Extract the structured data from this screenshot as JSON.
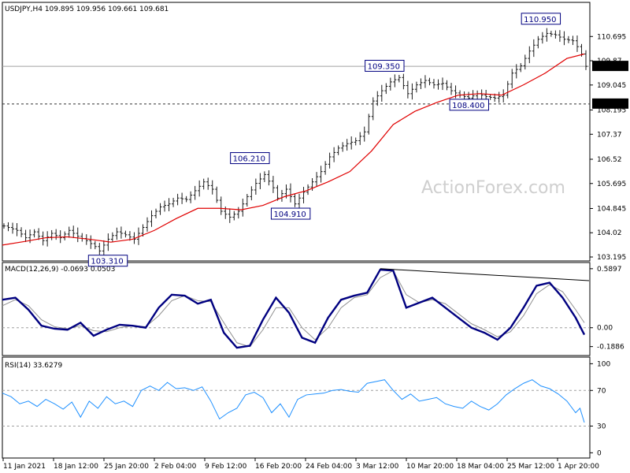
{
  "chart_data": {
    "type": "line",
    "watermark": "ActionForex.com",
    "x_labels": [
      "11 Jan 2021",
      "18 Jan 12:00",
      "25 Jan 20:00",
      "2 Feb 04:00",
      "9 Feb 12:00",
      "16 Feb 20:00",
      "24 Feb 04:00",
      "3 Mar 12:00",
      "10 Mar 20:00",
      "18 Mar 04:00",
      "25 Mar 12:00",
      "1 Apr 20:00"
    ],
    "price": {
      "header": "USDJPY,H4  109.895 109.956 109.661 109.681",
      "y_ticks": [
        103.195,
        104.02,
        104.845,
        105.695,
        106.52,
        107.37,
        108.195,
        109.045,
        109.87,
        110.695
      ],
      "ylim": [
        103.195,
        111.4
      ],
      "current": {
        "value": 109.681,
        "label": "109.681"
      },
      "level": {
        "value": 108.4,
        "label": "108.400"
      },
      "annotations": [
        {
          "label": "103.310",
          "x": 22,
          "y": 103.31
        },
        {
          "label": "106.210",
          "x": 57,
          "y": 106.21
        },
        {
          "label": "104.910",
          "x": 63,
          "y": 104.91
        },
        {
          "label": "109.350",
          "x": 88,
          "y": 109.35
        },
        {
          "label": "108.400",
          "x": 107,
          "y": 108.4
        },
        {
          "label": "110.950",
          "x": 124,
          "y": 110.95
        }
      ],
      "close": [
        [
          0,
          104.25
        ],
        [
          3,
          104.1
        ],
        [
          5,
          103.85
        ],
        [
          7,
          104.05
        ],
        [
          9,
          103.75
        ],
        [
          11,
          104.0
        ],
        [
          13,
          103.85
        ],
        [
          15,
          104.1
        ],
        [
          17,
          103.9
        ],
        [
          19,
          103.75
        ],
        [
          21,
          103.55
        ],
        [
          22,
          103.4
        ],
        [
          24,
          103.8
        ],
        [
          26,
          104.05
        ],
        [
          28,
          103.95
        ],
        [
          30,
          103.8
        ],
        [
          32,
          104.2
        ],
        [
          34,
          104.6
        ],
        [
          36,
          104.9
        ],
        [
          38,
          105.0
        ],
        [
          40,
          105.2
        ],
        [
          42,
          105.15
        ],
        [
          44,
          105.45
        ],
        [
          46,
          105.75
        ],
        [
          48,
          105.5
        ],
        [
          50,
          104.75
        ],
        [
          52,
          104.55
        ],
        [
          54,
          104.75
        ],
        [
          56,
          105.25
        ],
        [
          58,
          105.7
        ],
        [
          60,
          106.0
        ],
        [
          62,
          105.55
        ],
        [
          63,
          105.2
        ],
        [
          65,
          105.5
        ],
        [
          67,
          105.0
        ],
        [
          69,
          105.4
        ],
        [
          71,
          105.75
        ],
        [
          73,
          106.1
        ],
        [
          75,
          106.6
        ],
        [
          77,
          106.9
        ],
        [
          79,
          107.05
        ],
        [
          81,
          107.15
        ],
        [
          83,
          107.45
        ],
        [
          85,
          108.5
        ],
        [
          87,
          108.85
        ],
        [
          89,
          109.15
        ],
        [
          91,
          109.3
        ],
        [
          93,
          108.75
        ],
        [
          95,
          109.05
        ],
        [
          97,
          109.2
        ],
        [
          99,
          109.05
        ],
        [
          101,
          109.1
        ],
        [
          103,
          108.85
        ],
        [
          105,
          108.7
        ],
        [
          107,
          108.6
        ],
        [
          109,
          108.75
        ],
        [
          111,
          108.65
        ],
        [
          113,
          108.6
        ],
        [
          115,
          108.7
        ],
        [
          117,
          109.45
        ],
        [
          119,
          109.7
        ],
        [
          121,
          110.2
        ],
        [
          123,
          110.6
        ],
        [
          125,
          110.8
        ],
        [
          127,
          110.75
        ],
        [
          129,
          110.6
        ],
        [
          131,
          110.55
        ],
        [
          132,
          110.35
        ],
        [
          133,
          110.1
        ],
        [
          134,
          109.68
        ]
      ],
      "ma": [
        [
          0,
          103.6
        ],
        [
          5,
          103.72
        ],
        [
          10,
          103.85
        ],
        [
          15,
          103.88
        ],
        [
          20,
          103.8
        ],
        [
          25,
          103.7
        ],
        [
          30,
          103.8
        ],
        [
          35,
          104.1
        ],
        [
          40,
          104.5
        ],
        [
          45,
          104.85
        ],
        [
          50,
          104.85
        ],
        [
          55,
          104.8
        ],
        [
          60,
          104.95
        ],
        [
          65,
          105.25
        ],
        [
          70,
          105.45
        ],
        [
          75,
          105.75
        ],
        [
          80,
          106.1
        ],
        [
          85,
          106.8
        ],
        [
          90,
          107.7
        ],
        [
          95,
          108.15
        ],
        [
          100,
          108.45
        ],
        [
          105,
          108.7
        ],
        [
          110,
          108.75
        ],
        [
          115,
          108.7
        ],
        [
          120,
          109.05
        ],
        [
          125,
          109.45
        ],
        [
          130,
          109.95
        ],
        [
          134,
          110.1
        ]
      ]
    },
    "macd": {
      "header": "MACD(12,26,9) -0.0693 0.0503",
      "y_ticks": [
        {
          "label": "0.5897",
          "v": 0.5897
        },
        {
          "label": "0.00",
          "v": 0.0
        },
        {
          "label": "-0.1886",
          "v": -0.1886
        }
      ],
      "ylim": [
        -0.27,
        0.62
      ],
      "line": [
        [
          0,
          0.28
        ],
        [
          3,
          0.3
        ],
        [
          6,
          0.18
        ],
        [
          9,
          0.02
        ],
        [
          12,
          -0.01
        ],
        [
          15,
          -0.02
        ],
        [
          18,
          0.05
        ],
        [
          21,
          -0.08
        ],
        [
          24,
          -0.02
        ],
        [
          27,
          0.03
        ],
        [
          30,
          0.02
        ],
        [
          33,
          0.0
        ],
        [
          36,
          0.2
        ],
        [
          39,
          0.33
        ],
        [
          42,
          0.32
        ],
        [
          45,
          0.24
        ],
        [
          48,
          0.28
        ],
        [
          51,
          -0.05
        ],
        [
          54,
          -0.2
        ],
        [
          57,
          -0.18
        ],
        [
          60,
          0.08
        ],
        [
          63,
          0.3
        ],
        [
          66,
          0.15
        ],
        [
          69,
          -0.1
        ],
        [
          72,
          -0.15
        ],
        [
          75,
          0.1
        ],
        [
          78,
          0.28
        ],
        [
          81,
          0.32
        ],
        [
          84,
          0.35
        ],
        [
          87,
          0.58
        ],
        [
          90,
          0.57
        ],
        [
          93,
          0.2
        ],
        [
          96,
          0.25
        ],
        [
          99,
          0.3
        ],
        [
          102,
          0.2
        ],
        [
          105,
          0.1
        ],
        [
          108,
          0.0
        ],
        [
          111,
          -0.05
        ],
        [
          114,
          -0.12
        ],
        [
          117,
          0.0
        ],
        [
          120,
          0.2
        ],
        [
          123,
          0.42
        ],
        [
          126,
          0.45
        ],
        [
          129,
          0.3
        ],
        [
          132,
          0.1
        ],
        [
          134,
          -0.07
        ]
      ],
      "signal": [
        [
          0,
          0.22
        ],
        [
          3,
          0.28
        ],
        [
          6,
          0.22
        ],
        [
          9,
          0.08
        ],
        [
          12,
          0.01
        ],
        [
          15,
          -0.01
        ],
        [
          18,
          0.02
        ],
        [
          21,
          -0.03
        ],
        [
          24,
          -0.04
        ],
        [
          27,
          0.0
        ],
        [
          30,
          0.02
        ],
        [
          33,
          0.01
        ],
        [
          36,
          0.12
        ],
        [
          39,
          0.27
        ],
        [
          42,
          0.32
        ],
        [
          45,
          0.27
        ],
        [
          48,
          0.26
        ],
        [
          51,
          0.05
        ],
        [
          54,
          -0.15
        ],
        [
          57,
          -0.19
        ],
        [
          60,
          -0.02
        ],
        [
          63,
          0.2
        ],
        [
          66,
          0.2
        ],
        [
          69,
          0.0
        ],
        [
          72,
          -0.12
        ],
        [
          75,
          0.0
        ],
        [
          78,
          0.2
        ],
        [
          81,
          0.3
        ],
        [
          84,
          0.33
        ],
        [
          87,
          0.5
        ],
        [
          90,
          0.57
        ],
        [
          93,
          0.33
        ],
        [
          96,
          0.25
        ],
        [
          99,
          0.28
        ],
        [
          102,
          0.24
        ],
        [
          105,
          0.14
        ],
        [
          108,
          0.04
        ],
        [
          111,
          -0.02
        ],
        [
          114,
          -0.09
        ],
        [
          117,
          -0.04
        ],
        [
          120,
          0.12
        ],
        [
          123,
          0.34
        ],
        [
          126,
          0.43
        ],
        [
          129,
          0.36
        ],
        [
          132,
          0.18
        ],
        [
          134,
          0.05
        ]
      ],
      "trendline": [
        [
          87,
          0.59
        ],
        [
          134,
          0.47
        ]
      ]
    },
    "rsi": {
      "header": "RSI(14) 33.6279",
      "y_ticks": [
        {
          "label": "100",
          "v": 100
        },
        {
          "label": "70",
          "v": 70
        },
        {
          "label": "30",
          "v": 30
        },
        {
          "label": "0",
          "v": 0
        }
      ],
      "ylim": [
        -5,
        103
      ],
      "levels": [
        70,
        30
      ],
      "values": [
        [
          0,
          67
        ],
        [
          2,
          63
        ],
        [
          4,
          55
        ],
        [
          6,
          58
        ],
        [
          8,
          52
        ],
        [
          10,
          60
        ],
        [
          12,
          55
        ],
        [
          14,
          49
        ],
        [
          16,
          57
        ],
        [
          18,
          40
        ],
        [
          20,
          58
        ],
        [
          22,
          50
        ],
        [
          24,
          63
        ],
        [
          26,
          55
        ],
        [
          28,
          58
        ],
        [
          30,
          52
        ],
        [
          32,
          70
        ],
        [
          34,
          75
        ],
        [
          36,
          70
        ],
        [
          38,
          79
        ],
        [
          40,
          72
        ],
        [
          42,
          73
        ],
        [
          44,
          70
        ],
        [
          46,
          74
        ],
        [
          48,
          58
        ],
        [
          50,
          38
        ],
        [
          52,
          45
        ],
        [
          54,
          50
        ],
        [
          56,
          65
        ],
        [
          58,
          68
        ],
        [
          60,
          62
        ],
        [
          62,
          45
        ],
        [
          64,
          55
        ],
        [
          66,
          40
        ],
        [
          68,
          60
        ],
        [
          70,
          65
        ],
        [
          72,
          66
        ],
        [
          74,
          67
        ],
        [
          76,
          70
        ],
        [
          78,
          71
        ],
        [
          80,
          69
        ],
        [
          82,
          68
        ],
        [
          84,
          78
        ],
        [
          86,
          80
        ],
        [
          88,
          82
        ],
        [
          90,
          70
        ],
        [
          92,
          60
        ],
        [
          94,
          66
        ],
        [
          96,
          58
        ],
        [
          98,
          60
        ],
        [
          100,
          62
        ],
        [
          102,
          55
        ],
        [
          104,
          52
        ],
        [
          106,
          50
        ],
        [
          108,
          58
        ],
        [
          110,
          52
        ],
        [
          112,
          48
        ],
        [
          114,
          55
        ],
        [
          116,
          65
        ],
        [
          118,
          72
        ],
        [
          120,
          78
        ],
        [
          122,
          82
        ],
        [
          124,
          75
        ],
        [
          126,
          72
        ],
        [
          128,
          66
        ],
        [
          130,
          58
        ],
        [
          132,
          45
        ],
        [
          133,
          50
        ],
        [
          134,
          34
        ]
      ]
    }
  }
}
